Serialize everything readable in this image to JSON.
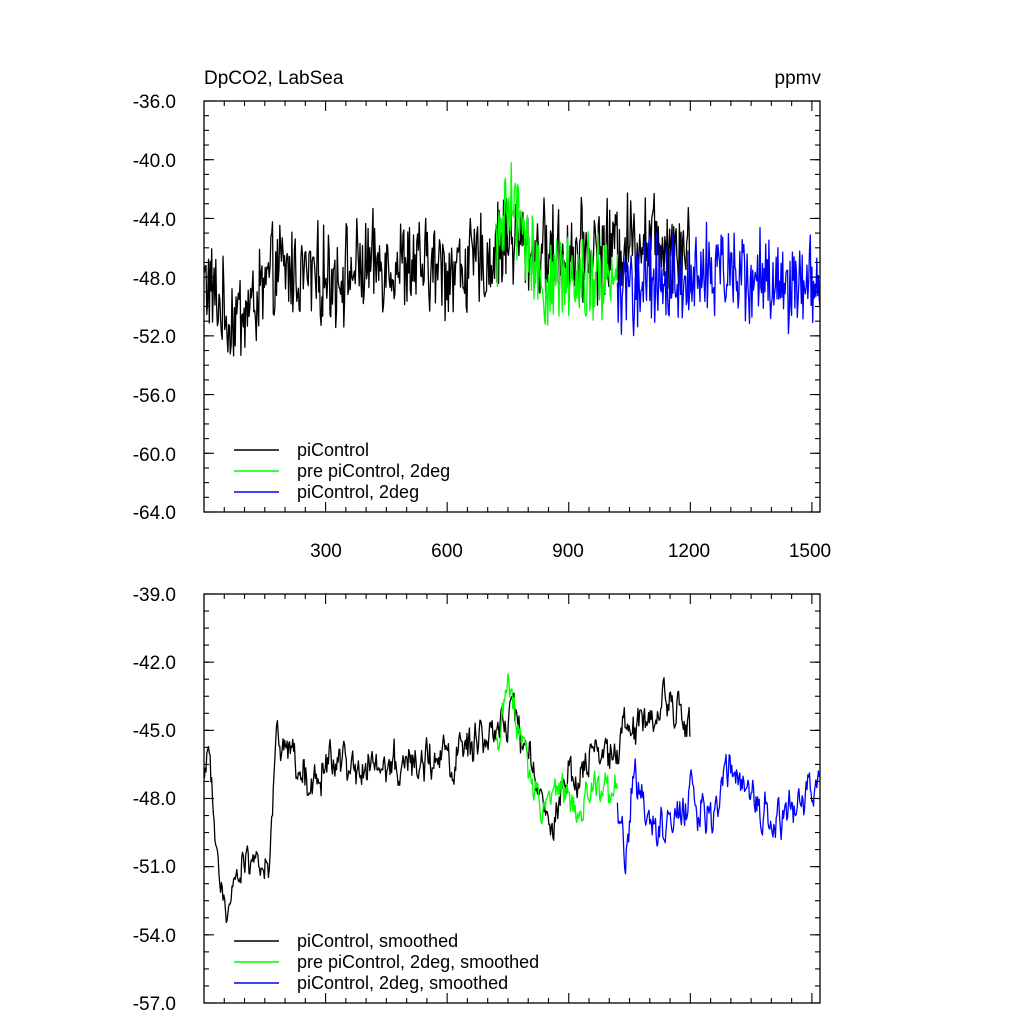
{
  "chart_data": [
    {
      "type": "line",
      "title_left": "DpCO2, LabSea",
      "title_right": "ppmv",
      "xlabel": "",
      "ylabel": "",
      "xlim": [
        0,
        1520
      ],
      "ylim": [
        -64,
        -36
      ],
      "x_ticks": [
        300,
        600,
        900,
        1200,
        1500
      ],
      "x_tick_labels": [
        "300",
        "600",
        "900",
        "1200",
        "1500"
      ],
      "y_ticks": [
        -36,
        -40,
        -44,
        -48,
        -52,
        -56,
        -60,
        -64
      ],
      "y_tick_labels": [
        "-36.0",
        "-40.0",
        "-44.0",
        "-48.0",
        "-52.0",
        "-56.0",
        "-60.0",
        "-64.0"
      ],
      "legend_position": "bottom-left",
      "series": [
        {
          "name": "piControl",
          "color": "#000000",
          "x_start": 1,
          "x_end": 1200,
          "anchors": [
            [
              0,
              -48
            ],
            [
              60,
              -51
            ],
            [
              120,
              -50
            ],
            [
              180,
              -47.5
            ],
            [
              300,
              -48
            ],
            [
              450,
              -47
            ],
            [
              600,
              -47.5
            ],
            [
              700,
              -47
            ],
            [
              750,
              -45
            ],
            [
              800,
              -46
            ],
            [
              900,
              -46.5
            ],
            [
              1000,
              -46
            ],
            [
              1100,
              -45
            ],
            [
              1200,
              -46
            ]
          ],
          "noise": 2.6,
          "values_note": "yearly values, shape estimated from figure"
        },
        {
          "name": "pre piControl, 2deg",
          "color": "#00ff00",
          "x_start": 720,
          "x_end": 1020,
          "anchors": [
            [
              720,
              -46
            ],
            [
              760,
              -43
            ],
            [
              800,
              -46
            ],
            [
              850,
              -49
            ],
            [
              900,
              -47.5
            ],
            [
              960,
              -48
            ],
            [
              1020,
              -48
            ]
          ],
          "noise": 2.4,
          "values_note": "yearly values, shape estimated from figure"
        },
        {
          "name": "piControl, 2deg",
          "color": "#0000ff",
          "x_start": 1020,
          "x_end": 1520,
          "anchors": [
            [
              1020,
              -49
            ],
            [
              1100,
              -48.5
            ],
            [
              1200,
              -48
            ],
            [
              1300,
              -47.5
            ],
            [
              1400,
              -48.5
            ],
            [
              1520,
              -48
            ]
          ],
          "noise": 2.5,
          "values_note": "yearly values, shape estimated from figure"
        }
      ]
    },
    {
      "type": "line",
      "xlabel": "",
      "ylabel": "",
      "xlim": [
        0,
        1520
      ],
      "ylim": [
        -57,
        -39
      ],
      "x_ticks": [
        300,
        600,
        900,
        1200,
        1500
      ],
      "x_tick_labels": [],
      "y_ticks": [
        -39,
        -42,
        -45,
        -48,
        -51,
        -54,
        -57
      ],
      "y_tick_labels": [
        "-39.0",
        "-42.0",
        "-45.0",
        "-48.0",
        "-51.0",
        "-54.0",
        "-57.0"
      ],
      "legend_position": "bottom-left",
      "series": [
        {
          "name": "piControl, smoothed",
          "color": "#000000",
          "x_start": 1,
          "x_end": 1200,
          "anchors": [
            [
              0,
              -47.5
            ],
            [
              10,
              -46
            ],
            [
              30,
              -50
            ],
            [
              60,
              -54
            ],
            [
              80,
              -51
            ],
            [
              120,
              -50.5
            ],
            [
              160,
              -51
            ],
            [
              180,
              -45
            ],
            [
              250,
              -47
            ],
            [
              350,
              -46.5
            ],
            [
              500,
              -46.5
            ],
            [
              700,
              -45.5
            ],
            [
              760,
              -44.5
            ],
            [
              800,
              -46
            ],
            [
              850,
              -49.5
            ],
            [
              900,
              -47
            ],
            [
              1000,
              -46
            ],
            [
              1100,
              -44
            ],
            [
              1150,
              -43.5
            ],
            [
              1200,
              -45
            ]
          ],
          "noise": 0.9,
          "values_note": "smoothed values, shape estimated from figure"
        },
        {
          "name": "pre piControl, 2deg, smoothed",
          "color": "#00ff00",
          "x_start": 720,
          "x_end": 1020,
          "anchors": [
            [
              720,
              -46
            ],
            [
              750,
              -43
            ],
            [
              780,
              -45
            ],
            [
              800,
              -47
            ],
            [
              840,
              -48.5
            ],
            [
              880,
              -47.5
            ],
            [
              920,
              -48.5
            ],
            [
              960,
              -47.5
            ],
            [
              1000,
              -48
            ],
            [
              1020,
              -47.5
            ]
          ],
          "noise": 0.8,
          "values_note": "smoothed values, shape estimated from figure"
        },
        {
          "name": "piControl, 2deg, smoothed",
          "color": "#0000ff",
          "x_start": 1020,
          "x_end": 1520,
          "anchors": [
            [
              1020,
              -48.5
            ],
            [
              1040,
              -51
            ],
            [
              1060,
              -47
            ],
            [
              1100,
              -49
            ],
            [
              1150,
              -49.5
            ],
            [
              1200,
              -48
            ],
            [
              1250,
              -49
            ],
            [
              1300,
              -46.5
            ],
            [
              1350,
              -48
            ],
            [
              1400,
              -49
            ],
            [
              1450,
              -48.5
            ],
            [
              1520,
              -47
            ]
          ],
          "noise": 0.9,
          "values_note": "smoothed values, shape estimated from figure"
        }
      ]
    }
  ]
}
